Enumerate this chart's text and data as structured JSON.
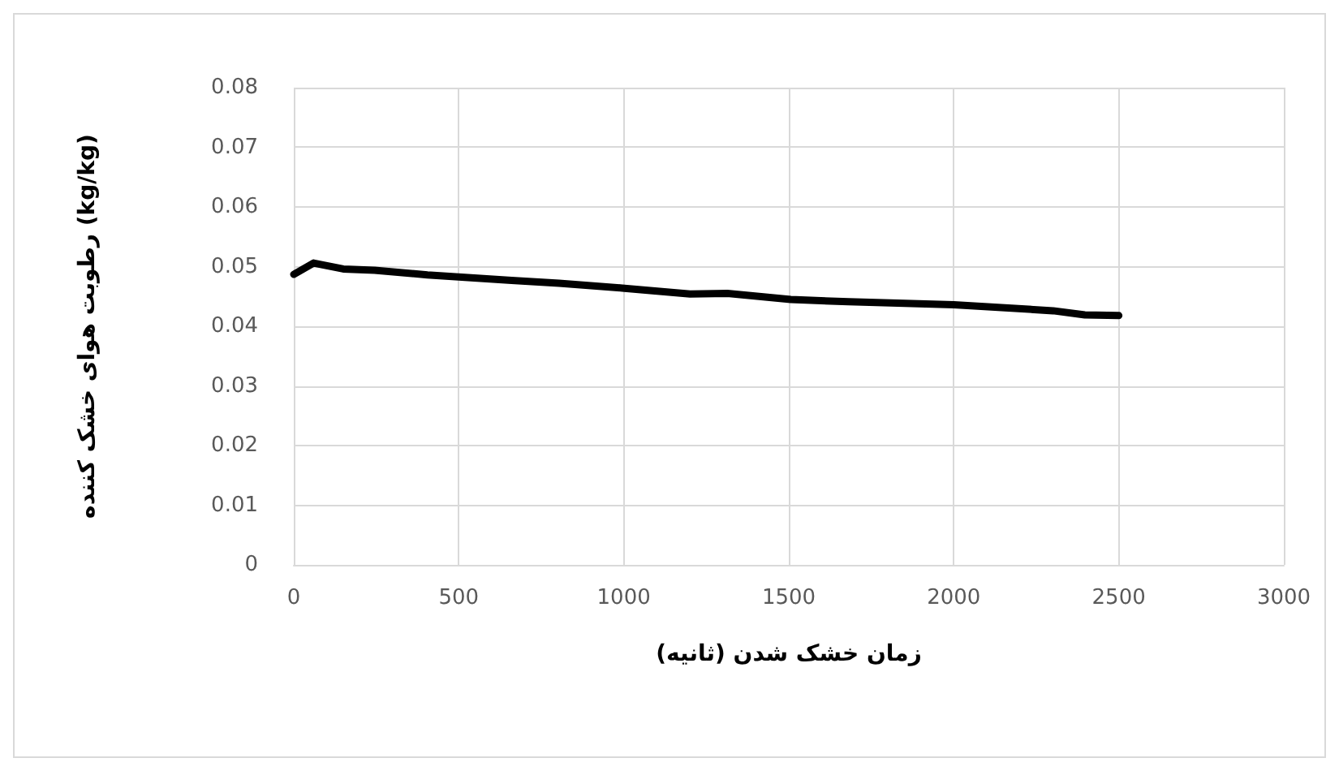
{
  "chart_data": {
    "type": "line",
    "xlabel": "زمان خشک شدن (ثانیه)",
    "ylabel": "رطوبت هوای خشک کننده (kg/kg)",
    "series": [
      {
        "color": "#000000",
        "x": [
          0,
          60,
          150,
          245,
          405,
          660,
          804,
          995,
          1201,
          1314,
          1506,
          1681,
          2000,
          2301,
          2397,
          2500
        ],
        "values": [
          0.0487,
          0.0506,
          0.0496,
          0.0494,
          0.0486,
          0.0477,
          0.0472,
          0.0464,
          0.0454,
          0.0455,
          0.0445,
          0.0441,
          0.0436,
          0.0426,
          0.0419,
          0.0418
        ]
      }
    ],
    "xlim": [
      0,
      3000
    ],
    "xticks": [
      0,
      500,
      1000,
      1500,
      2000,
      2500,
      3000
    ],
    "ylim": [
      0,
      0.08
    ],
    "yticks": [
      0,
      0.01,
      0.02,
      0.03,
      0.04,
      0.05,
      0.06,
      0.07,
      0.08
    ],
    "grid": true,
    "marker": "none",
    "line_style": "solid"
  }
}
